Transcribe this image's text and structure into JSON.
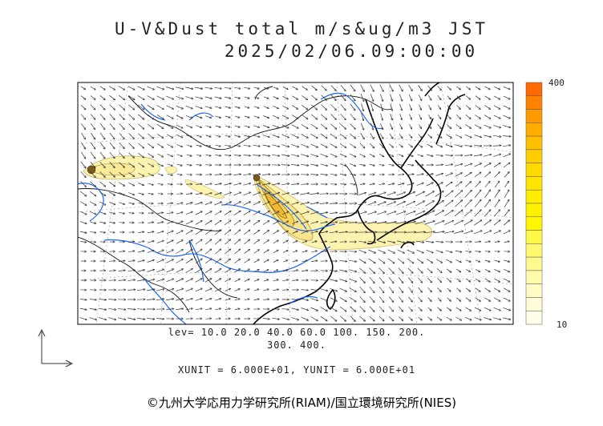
{
  "header": {
    "title": "U-V&Dust total m/s&ug/m3 JST",
    "datetime": "2025/02/06.09:00:00"
  },
  "colorbar": {
    "max_label": "400",
    "min_label": "10",
    "colors": [
      "#ff6a00",
      "#ff8200",
      "#ff9a00",
      "#ffae00",
      "#ffc000",
      "#ffce00",
      "#ffda00",
      "#ffe400",
      "#ffec00",
      "#fff200",
      "#fff600",
      "#fff84a",
      "#fff970",
      "#fffa90",
      "#fffbac",
      "#fffcc4",
      "#fffdd8",
      "#fffee8"
    ]
  },
  "legend": {
    "levels": "lev= 10.0 20.0 40.0 60.0 100. 150. 200.",
    "levels_cont": "300. 400.",
    "units": "XUNIT = 6.000E+01, YUNIT = 6.000E+01"
  },
  "footer": {
    "copyright": "©九州大学応用力学研究所(RIAM)/国立環境研究所(NIES)"
  },
  "map_style": {
    "coast_color": "#000000",
    "river_color": "#1a66ff",
    "border_color": "#000000",
    "dust_fill": "#fdf3b0"
  }
}
